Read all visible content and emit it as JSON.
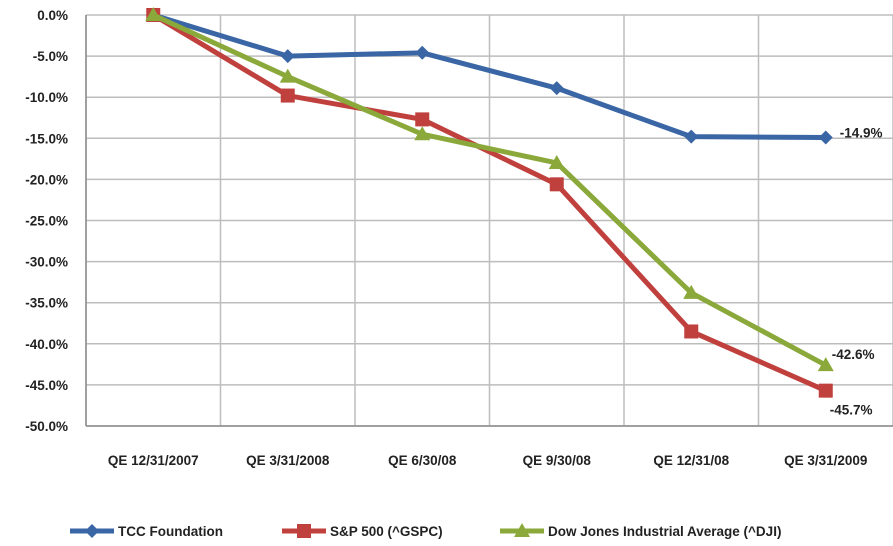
{
  "chart_data": {
    "type": "line",
    "categories": [
      "QE 12/31/2007",
      "QE 3/31/2008",
      "QE 6/30/08",
      "QE 9/30/08",
      "QE 12/31/08",
      "QE 3/31/2009"
    ],
    "y_ticks": [
      "0.0%",
      "-5.0%",
      "-10.0%",
      "-15.0%",
      "-20.0%",
      "-25.0%",
      "-30.0%",
      "-35.0%",
      "-40.0%",
      "-45.0%",
      "-50.0%"
    ],
    "ylim": [
      -50,
      0
    ],
    "grid": true,
    "legend_position": "bottom",
    "series": [
      {
        "name": "TCC Foundation",
        "color": "#3a66a5",
        "marker": "diamond",
        "values": [
          0,
          -5.0,
          -4.6,
          -8.9,
          -14.8,
          -14.9
        ],
        "end_label": "-14.9%"
      },
      {
        "name": "S&P 500 (^GSPC)",
        "color": "#c0403d",
        "marker": "square",
        "values": [
          0,
          -9.8,
          -12.7,
          -20.6,
          -38.5,
          -45.7
        ],
        "end_label": "-45.7%"
      },
      {
        "name": "Dow Jones Industrial Average (^DJI)",
        "color": "#8aa93a",
        "marker": "triangle",
        "values": [
          0,
          -7.5,
          -14.5,
          -18.0,
          -33.8,
          -42.6
        ],
        "end_label": "-42.6%"
      }
    ]
  }
}
